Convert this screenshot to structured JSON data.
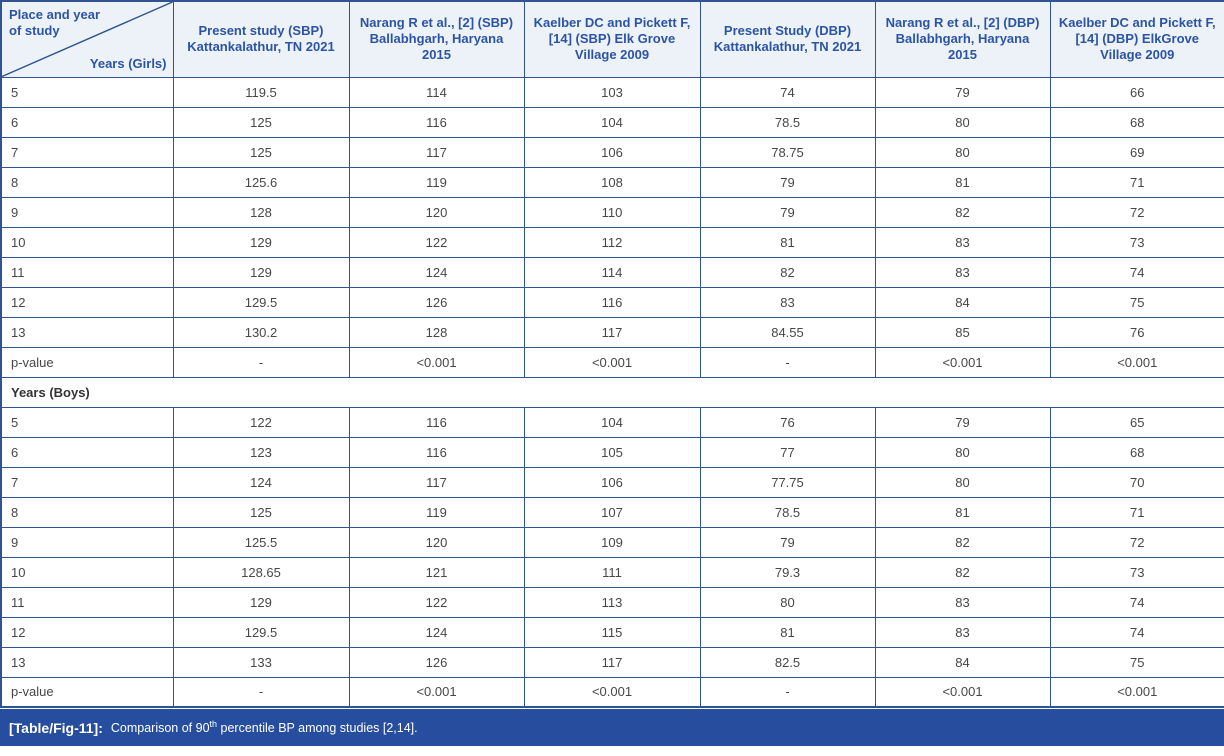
{
  "colors": {
    "border": "#2f5490",
    "header_bg": "#edf1f8",
    "header_text": "#2b55a4",
    "body_text": "#474747",
    "caption_bg": "#274e9e",
    "caption_text": "#ffffff"
  },
  "table": {
    "corner_top": "Place and year of study",
    "corner_bottom": "Years (Girls)",
    "columns": [
      "Present study (SBP) Kattankalathur, TN 2021",
      "Narang R et al., [2] (SBP) Ballabhgarh, Haryana 2015",
      "Kaelber DC and Pickett F, [14] (SBP) Elk Grove Village 2009",
      "Present Study (DBP) Kattankalathur, TN 2021",
      "Narang R et al., [2] (DBP) Ballabhgarh, Haryana 2015",
      "Kaelber DC and Pickett F, [14] (DBP) ElkGrove Village 2009"
    ],
    "girls_rows": [
      {
        "label": "5",
        "values": [
          "119.5",
          "114",
          "103",
          "74",
          "79",
          "66"
        ]
      },
      {
        "label": "6",
        "values": [
          "125",
          "116",
          "104",
          "78.5",
          "80",
          "68"
        ]
      },
      {
        "label": "7",
        "values": [
          "125",
          "117",
          "106",
          "78.75",
          "80",
          "69"
        ]
      },
      {
        "label": "8",
        "values": [
          "125.6",
          "119",
          "108",
          "79",
          "81",
          "71"
        ]
      },
      {
        "label": "9",
        "values": [
          "128",
          "120",
          "110",
          "79",
          "82",
          "72"
        ]
      },
      {
        "label": "10",
        "values": [
          "129",
          "122",
          "112",
          "81",
          "83",
          "73"
        ]
      },
      {
        "label": "11",
        "values": [
          "129",
          "124",
          "114",
          "82",
          "83",
          "74"
        ]
      },
      {
        "label": "12",
        "values": [
          "129.5",
          "126",
          "116",
          "83",
          "84",
          "75"
        ]
      },
      {
        "label": "13",
        "values": [
          "130.2",
          "128",
          "117",
          "84.55",
          "85",
          "76"
        ]
      },
      {
        "label": "p-value",
        "values": [
          "-",
          "<0.001",
          "<0.001",
          "-",
          "<0.001",
          "<0.001"
        ]
      }
    ],
    "boys_section_label": "Years (Boys)",
    "boys_rows": [
      {
        "label": "5",
        "values": [
          "122",
          "116",
          "104",
          "76",
          "79",
          "65"
        ]
      },
      {
        "label": "6",
        "values": [
          "123",
          "116",
          "105",
          "77",
          "80",
          "68"
        ]
      },
      {
        "label": "7",
        "values": [
          "124",
          "117",
          "106",
          "77.75",
          "80",
          "70"
        ]
      },
      {
        "label": "8",
        "values": [
          "125",
          "119",
          "107",
          "78.5",
          "81",
          "71"
        ]
      },
      {
        "label": "9",
        "values": [
          "125.5",
          "120",
          "109",
          "79",
          "82",
          "72"
        ]
      },
      {
        "label": "10",
        "values": [
          "128.65",
          "121",
          "111",
          "79.3",
          "82",
          "73"
        ]
      },
      {
        "label": "11",
        "values": [
          "129",
          "122",
          "113",
          "80",
          "83",
          "74"
        ]
      },
      {
        "label": "12",
        "values": [
          "129.5",
          "124",
          "115",
          "81",
          "83",
          "74"
        ]
      },
      {
        "label": "13",
        "values": [
          "133",
          "126",
          "117",
          "82.5",
          "84",
          "75"
        ]
      },
      {
        "label": "p-value",
        "values": [
          "-",
          "<0.001",
          "<0.001",
          "-",
          "<0.001",
          "<0.001"
        ]
      }
    ],
    "caption_label": "[Table/Fig-11]:",
    "caption_before_sup": "Comparison of 90",
    "caption_sup": "th",
    "caption_after_sup": " percentile BP among studies [2,14]."
  }
}
